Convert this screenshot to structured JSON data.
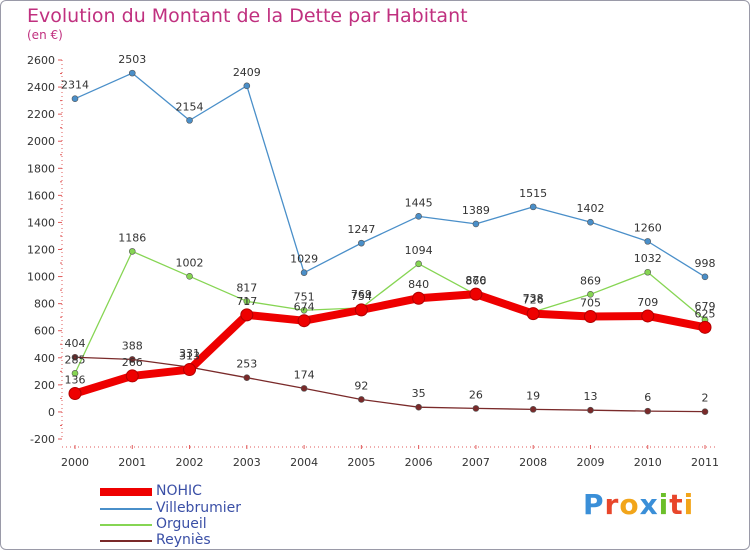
{
  "header": {
    "title": "Evolution du Montant de la Dette par Habitant",
    "unit": "(en €)"
  },
  "brand": {
    "name": "Proxiti",
    "letters": [
      "P",
      "r",
      "o",
      "x",
      "i",
      "t",
      "i"
    ],
    "letter_colors": [
      "#3a8fd8",
      "#e8462b",
      "#f2a51a",
      "#3a8fd8",
      "#6cbf2a",
      "#e8462b",
      "#f2a51a"
    ]
  },
  "chart_data": {
    "type": "line",
    "title": "Evolution du Montant de la Dette par Habitant",
    "subtitle": "(en €)",
    "xlabel": "",
    "ylabel": "",
    "x": [
      "2000",
      "2001",
      "2002",
      "2003",
      "2004",
      "2005",
      "2006",
      "2007",
      "2008",
      "2009",
      "2010",
      "2011"
    ],
    "ylim": [
      -200,
      2600
    ],
    "yticks": [
      -200,
      0,
      200,
      400,
      600,
      800,
      1000,
      1200,
      1400,
      1600,
      1800,
      2000,
      2200,
      2400,
      2600
    ],
    "grid": false,
    "legend_position": "bottom-left",
    "series": [
      {
        "name": "Villebrumier",
        "color": "#4a8fc9",
        "values": [
          2314,
          2503,
          2154,
          2409,
          1029,
          1247,
          1445,
          1389,
          1515,
          1402,
          1260,
          998
        ]
      },
      {
        "name": "Orgueil",
        "color": "#86d553",
        "values": [
          285,
          1186,
          1002,
          817,
          751,
          769,
          1094,
          866,
          738,
          869,
          1032,
          679
        ]
      },
      {
        "name": "Reyniès",
        "color": "#7a2a2a",
        "values": [
          404,
          388,
          331,
          253,
          174,
          92,
          35,
          26,
          19,
          13,
          6,
          2
        ]
      },
      {
        "name": "NOHIC",
        "color": "#ee0000",
        "values": [
          136,
          266,
          313,
          717,
          674,
          754,
          840,
          870,
          726,
          705,
          709,
          625
        ]
      }
    ],
    "legend_order": [
      "NOHIC",
      "Villebrumier",
      "Orgueil",
      "Reyniès"
    ]
  }
}
